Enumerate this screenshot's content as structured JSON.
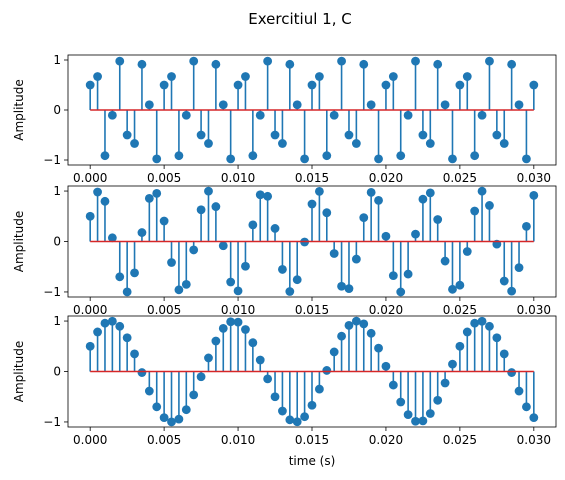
{
  "figure": {
    "suptitle": "Exercitiul 1, C"
  },
  "colors": {
    "stem": "#1f77b4",
    "baseline": "#d62728",
    "axis": "#000000",
    "background": "#ffffff"
  },
  "chart_data": [
    {
      "type": "stem",
      "title": "",
      "xlabel": "",
      "ylabel": "Amplitude",
      "xlim": [
        -0.0015,
        0.0315
      ],
      "ylim": [
        -1.1,
        1.1
      ],
      "xticks": [
        0.0,
        0.005,
        0.01,
        0.015,
        0.02,
        0.025,
        0.03
      ],
      "xtick_labels": [
        "0.000",
        "0.005",
        "0.010",
        "0.015",
        "0.020",
        "0.025",
        "0.030"
      ],
      "yticks": [
        -1,
        0,
        1
      ],
      "ytick_labels": [
        "−1",
        "0",
        "1"
      ],
      "grid": false,
      "series": [
        {
          "signal": "sin",
          "frequency": 600,
          "amplitude": 1,
          "phase": 0.5236,
          "sample_rate": 2000,
          "t_start": 0.0,
          "t_end": 0.03
        }
      ]
    },
    {
      "type": "stem",
      "title": "",
      "xlabel": "",
      "ylabel": "Amplitude",
      "xlim": [
        -0.0015,
        0.0315
      ],
      "ylim": [
        -1.1,
        1.1
      ],
      "xticks": [
        0.0,
        0.005,
        0.01,
        0.015,
        0.02,
        0.025,
        0.03
      ],
      "xtick_labels": [
        "0.000",
        "0.005",
        "0.010",
        "0.015",
        "0.020",
        "0.025",
        "0.030"
      ],
      "yticks": [
        -1,
        0,
        1
      ],
      "ytick_labels": [
        "−1",
        "0",
        "1"
      ],
      "grid": false,
      "series": [
        {
          "signal": "sin",
          "frequency": 270,
          "amplitude": 1,
          "phase": 0.5236,
          "sample_rate": 2000,
          "t_start": 0.0,
          "t_end": 0.03
        }
      ]
    },
    {
      "type": "stem",
      "title": "",
      "xlabel": "time (s)",
      "ylabel": "Amplitude",
      "xlim": [
        -0.0015,
        0.0315
      ],
      "ylim": [
        -1.1,
        1.1
      ],
      "xticks": [
        0.0,
        0.005,
        0.01,
        0.015,
        0.02,
        0.025,
        0.03
      ],
      "xtick_labels": [
        "0.000",
        "0.005",
        "0.010",
        "0.015",
        "0.020",
        "0.025",
        "0.030"
      ],
      "yticks": [
        -1,
        0,
        1
      ],
      "ytick_labels": [
        "−1",
        "0",
        "1"
      ],
      "grid": false,
      "series": [
        {
          "signal": "sin",
          "frequency": 120,
          "amplitude": 1,
          "phase": 0.5236,
          "sample_rate": 2000,
          "t_start": 0.0,
          "t_end": 0.03
        }
      ]
    }
  ]
}
